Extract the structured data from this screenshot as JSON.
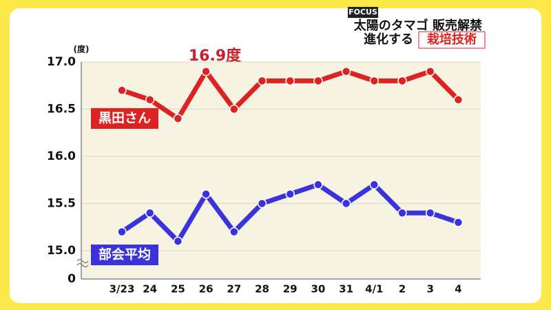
{
  "chart_data": {
    "type": "line",
    "header_logo": "FOCUS",
    "header_line1": "太陽のタマゴ 販売解禁",
    "header_line2a": "進化する",
    "header_line2b": "栽培技術",
    "y_unit": "(度)",
    "annotation": "16.9度",
    "categories": [
      "3/23",
      "24",
      "25",
      "26",
      "27",
      "28",
      "29",
      "30",
      "31",
      "4/1",
      "2",
      "3",
      "4"
    ],
    "series": [
      {
        "name": "黒田さん",
        "color": "#dd2222",
        "values": [
          16.7,
          16.6,
          16.4,
          16.9,
          16.5,
          16.8,
          16.8,
          16.8,
          16.9,
          16.8,
          16.8,
          16.9,
          16.6
        ]
      },
      {
        "name": "部会平均",
        "color": "#3a33dd",
        "values": [
          15.2,
          15.4,
          15.1,
          15.6,
          15.2,
          15.5,
          15.6,
          15.7,
          15.5,
          15.7,
          15.4,
          15.4,
          15.3
        ]
      }
    ],
    "ylim": [
      14.7,
      17.0
    ],
    "yticks": [
      0,
      {
        "value": 15,
        "label": "15.0"
      },
      15.5,
      {
        "value": 16,
        "label": "16.0"
      },
      16.5,
      {
        "value": 17,
        "label": "17.0"
      }
    ],
    "axis_break": true,
    "grid": true
  }
}
